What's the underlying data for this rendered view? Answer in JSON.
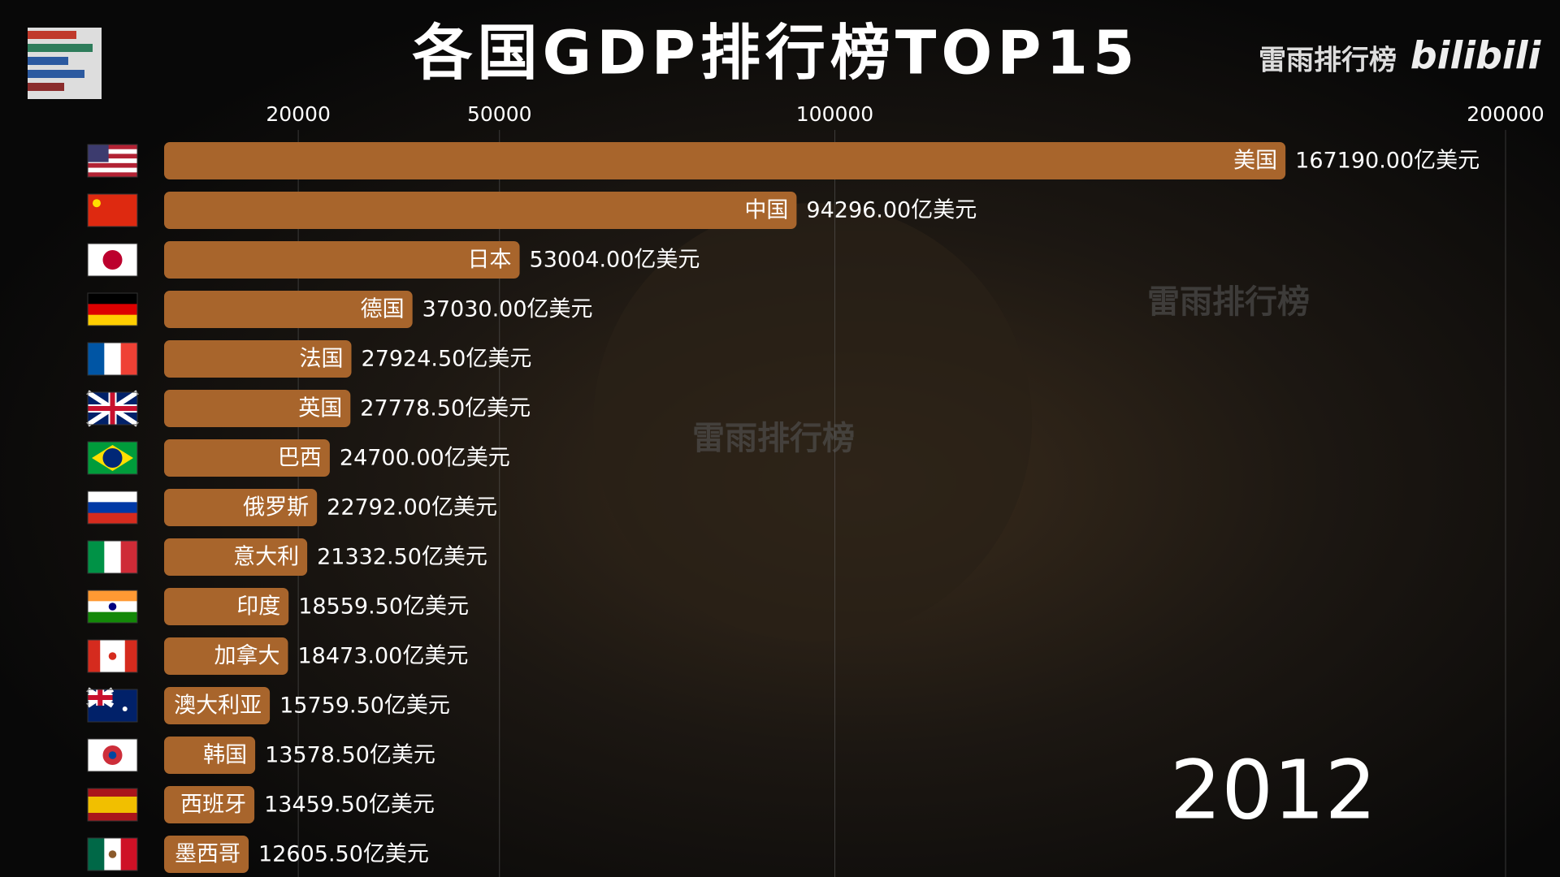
{
  "chart_data": {
    "type": "bar",
    "title": "各国GDP排行榜TOP15",
    "categories": [
      "美国",
      "中国",
      "日本",
      "德国",
      "法国",
      "英国",
      "巴西",
      "俄罗斯",
      "意大利",
      "印度",
      "加拿大",
      "澳大利亚",
      "韩国",
      "西班牙",
      "墨西哥"
    ],
    "values": [
      167190.0,
      94296.0,
      53004.0,
      37030.0,
      27924.5,
      27778.5,
      24700.0,
      22792.0,
      21332.5,
      18559.5,
      18473.0,
      15759.5,
      13578.5,
      13459.5,
      12605.5
    ],
    "value_labels": [
      "167190.00亿美元",
      "94296.00亿美元",
      "53004.00亿美元",
      "37030.00亿美元",
      "27924.50亿美元",
      "27778.50亿美元",
      "24700.00亿美元",
      "22792.00亿美元",
      "21332.50亿美元",
      "18559.50亿美元",
      "18473.00亿美元",
      "15759.50亿美元",
      "13578.50亿美元",
      "13459.50亿美元",
      "12605.50亿美元"
    ],
    "color": "#a8652c",
    "xlim": [
      0,
      200000
    ],
    "xticks": [
      20000,
      50000,
      100000,
      200000
    ],
    "grid": true,
    "year": "2012"
  },
  "header": {
    "brand": "雷雨排行榜",
    "logo": "bilibili"
  },
  "watermark": "雷雨排行榜"
}
